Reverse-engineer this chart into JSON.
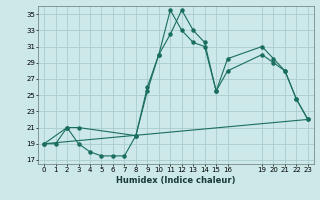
{
  "background_color": "#cce8e8",
  "grid_color": "#aacccc",
  "line_color": "#1a6e60",
  "xlabel": "Humidex (Indice chaleur)",
  "xlim": [
    -0.5,
    23.5
  ],
  "ylim": [
    16.5,
    36
  ],
  "xticks": [
    0,
    1,
    2,
    3,
    4,
    5,
    6,
    7,
    8,
    9,
    10,
    11,
    12,
    13,
    14,
    15,
    16,
    19,
    20,
    21,
    22,
    23
  ],
  "xtick_labels": [
    "0",
    "1",
    "2",
    "3",
    "4",
    "5",
    "6",
    "7",
    "8",
    "9",
    "10",
    "11",
    "12",
    "13",
    "14",
    "15",
    "16",
    "19",
    "20",
    "21",
    "22",
    "23"
  ],
  "yticks": [
    17,
    19,
    21,
    23,
    25,
    27,
    29,
    31,
    33,
    35
  ],
  "curve1_x": [
    0,
    1,
    2,
    3,
    4,
    5,
    6,
    7,
    8,
    9,
    10,
    11,
    12,
    13,
    14,
    15,
    16,
    19,
    20,
    21,
    22,
    23
  ],
  "curve1_y": [
    19,
    19,
    21,
    19,
    18,
    17.5,
    17.5,
    17.5,
    20,
    26,
    30,
    35.5,
    33,
    31.5,
    31,
    25.5,
    29.5,
    31,
    29.5,
    28,
    24.5,
    22
  ],
  "curve2_x": [
    0,
    2,
    3,
    8,
    9,
    10,
    11,
    12,
    13,
    14,
    15,
    16,
    19,
    20,
    21,
    22,
    23
  ],
  "curve2_y": [
    19,
    21,
    21,
    20,
    25.5,
    30,
    32.5,
    35.5,
    33,
    31.5,
    25.5,
    28,
    30,
    29,
    28,
    24.5,
    22
  ],
  "curve3_x": [
    0,
    23
  ],
  "curve3_y": [
    19,
    22
  ]
}
